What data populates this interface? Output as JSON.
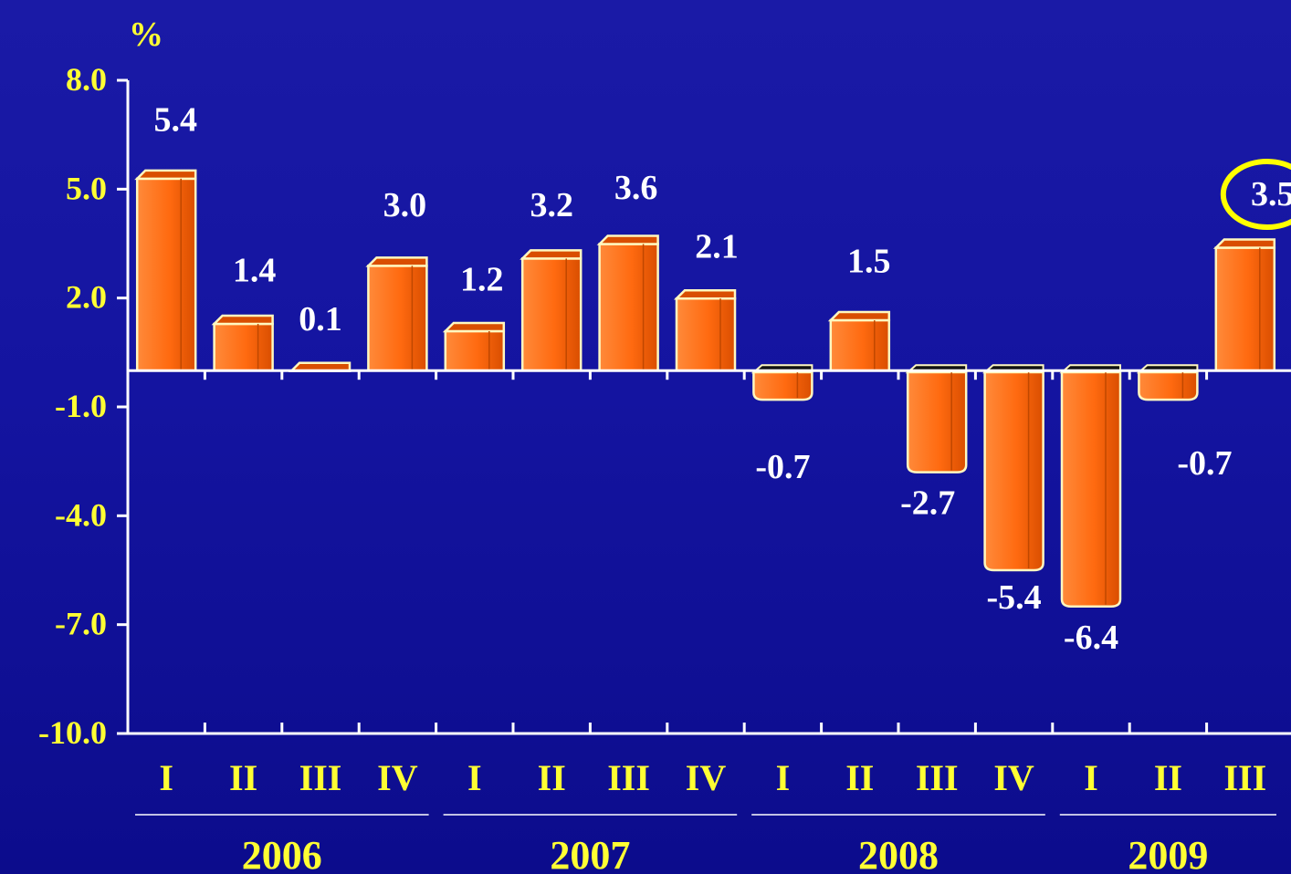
{
  "chart_data": {
    "type": "bar",
    "y_unit_label": "%",
    "ylim": [
      -10,
      8
    ],
    "y_ticks": [
      "8.0",
      "5.0",
      "2.0",
      "-1.0",
      "-4.0",
      "-7.0",
      "-10.0"
    ],
    "y_tick_values": [
      8,
      5,
      2,
      -1,
      -4,
      -7,
      -10
    ],
    "categories": [
      "I",
      "II",
      "III",
      "IV",
      "I",
      "II",
      "III",
      "IV",
      "I",
      "II",
      "III",
      "IV",
      "I",
      "II",
      "III"
    ],
    "values": [
      5.4,
      1.4,
      0.1,
      3.0,
      1.2,
      3.2,
      3.6,
      2.1,
      -0.7,
      1.5,
      -2.7,
      -5.4,
      -6.4,
      -0.7,
      3.5
    ],
    "value_labels": [
      "5.4",
      "1.4",
      "0.1",
      "3.0",
      "1.2",
      "3.2",
      "3.6",
      "2.1",
      "-0.7",
      "1.5",
      "-2.7",
      "-5.4",
      "-6.4",
      "-0.7",
      "3.5"
    ],
    "year_groups": [
      {
        "label": "2006",
        "start": 0,
        "end": 3
      },
      {
        "label": "2007",
        "start": 4,
        "end": 7
      },
      {
        "label": "2008",
        "start": 8,
        "end": 11
      },
      {
        "label": "2009",
        "start": 12,
        "end": 14
      }
    ],
    "highlighted_index": 14,
    "colors": {
      "bar": "#ff6a10",
      "bar_light": "#ff8a3a",
      "bar_dark": "#d94e00",
      "outline": "#fff8c0",
      "text": "#ffff33",
      "value_text": "#ffffff",
      "axis": "#ffffff",
      "highlight_ring": "#ffff00"
    }
  }
}
